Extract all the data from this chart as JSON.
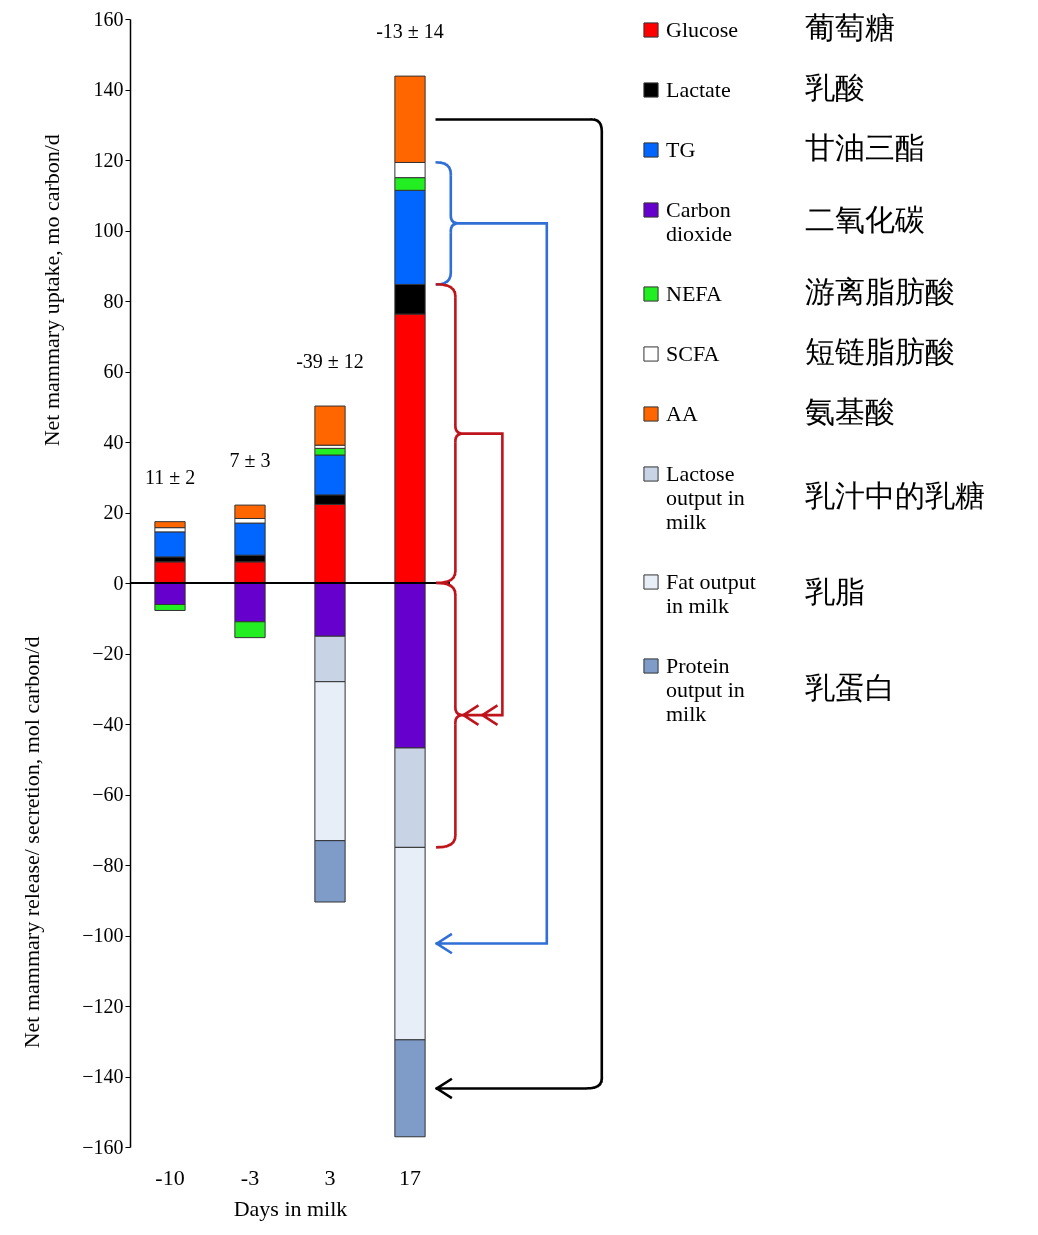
{
  "chart_data": {
    "type": "bar",
    "stacked": true,
    "xlabel": "Days in milk",
    "ylabel": "Net mammary uptake, mo carbon/d",
    "categories": [
      "-10",
      "-3",
      "3",
      "17"
    ],
    "ylim": [
      -160,
      160
    ],
    "yticks": [
      -160,
      -140,
      -120,
      -100,
      -80,
      -60,
      -40,
      -20,
      0,
      20,
      40,
      60,
      80,
      100,
      120,
      140,
      160
    ],
    "legend": "right",
    "ref_lines": [
      {
        "axis": "y",
        "value": 0,
        "color": "#000000"
      }
    ],
    "series": [
      {
        "name": "Glucose",
        "color": "#ff0000",
        "values": [
          6.0,
          6.0,
          22.3,
          76.3
        ]
      },
      {
        "name": "Lactate",
        "color": "#000000",
        "values": [
          1.4,
          1.9,
          2.7,
          8.4
        ]
      },
      {
        "name": "TG",
        "color": "#0066ff",
        "values": [
          7.1,
          9.1,
          11.3,
          26.7
        ]
      },
      {
        "name": "Carbon dioxide",
        "color": "#6600cc",
        "values": [
          -6.1,
          -11.0,
          -15.1,
          -46.8
        ]
      },
      {
        "name": "NEFA",
        "color": "#22ee22",
        "values": [
          -1.7,
          -4.5,
          1.9,
          3.6
        ]
      },
      {
        "name": "SCFA",
        "color": "#ffffff",
        "values": [
          1.2,
          1.3,
          0.9,
          4.3
        ]
      },
      {
        "name": "AA",
        "color": "#ff6600",
        "values": [
          1.7,
          3.8,
          11.1,
          24.5
        ]
      },
      {
        "name": "Lactose output in milk",
        "color": "#c8d4e6",
        "values": [
          null,
          null,
          -12.9,
          -28.2
        ]
      },
      {
        "name": "Fat output in milk",
        "color": "#e8eef7",
        "values": [
          null,
          null,
          -45.1,
          -54.6
        ]
      },
      {
        "name": "Protein output in milk",
        "color": "#7f9cc9",
        "values": [
          null,
          null,
          -17.4,
          -27.5
        ]
      }
    ],
    "annotations": [
      "11 ± 2",
      "7 ± 3",
      "-39 ± 12",
      "-13 ± 14",
      "Net mammary release/ secretion, mol carbon/d",
      "葡萄糖",
      "乳酸",
      "甘油三酯",
      "二氧化碳",
      "游离脂肪酸",
      "短链脂肪酸",
      "氨基酸",
      "乳汁中的乳糖",
      "乳脂",
      "乳蛋白"
    ]
  }
}
